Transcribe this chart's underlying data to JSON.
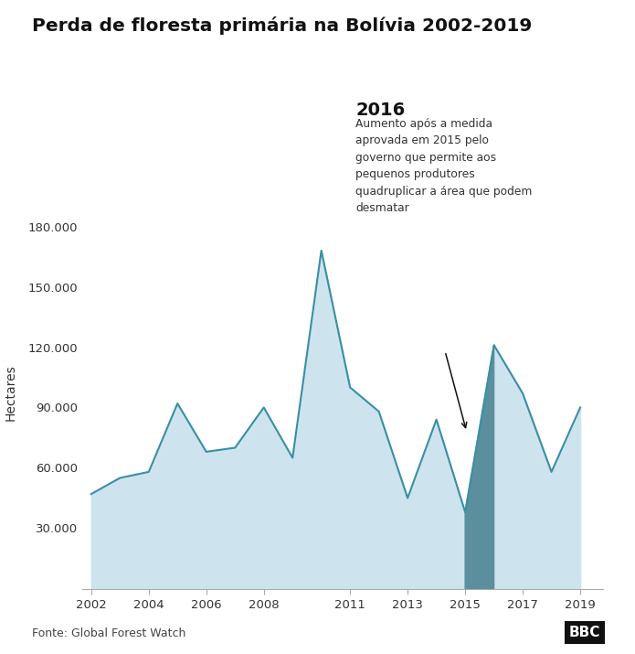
{
  "title": "Perda de floresta primária na Bolívia 2002-2019",
  "ylabel": "Hectares",
  "source": "Fonte: Global Forest Watch",
  "bbc_logo": "BBC",
  "years": [
    2002,
    2003,
    2004,
    2005,
    2006,
    2007,
    2008,
    2009,
    2010,
    2011,
    2012,
    2013,
    2014,
    2015,
    2016,
    2017,
    2018,
    2019
  ],
  "values": [
    47000,
    55000,
    58000,
    92000,
    68000,
    70000,
    90000,
    65000,
    168000,
    100000,
    88000,
    45000,
    84000,
    38000,
    121000,
    97000,
    58000,
    90000
  ],
  "fill_color": "#cde4ef",
  "line_color": "#3a8fa3",
  "highlight_color": "#5b8f9e",
  "highlight_year": 2016,
  "annotation_title": "2016",
  "annotation_text": "Aumento após a medida\naprovada em 2015 pelo\ngoverno que permite aos\npequenos produtores\nquadruplicar a área que podem\ndesmatar",
  "yticks": [
    0,
    30000,
    60000,
    90000,
    120000,
    150000,
    180000
  ],
  "ytick_labels": [
    "",
    "30.000",
    "60.000",
    "90.000",
    "120.000",
    "150.000",
    "180.000"
  ],
  "xtick_years": [
    2002,
    2004,
    2006,
    2008,
    2011,
    2013,
    2015,
    2017,
    2019
  ],
  "ylim": [
    0,
    195000
  ],
  "xlim_left": 2001.7,
  "xlim_right": 2019.8,
  "background_color": "#ffffff"
}
